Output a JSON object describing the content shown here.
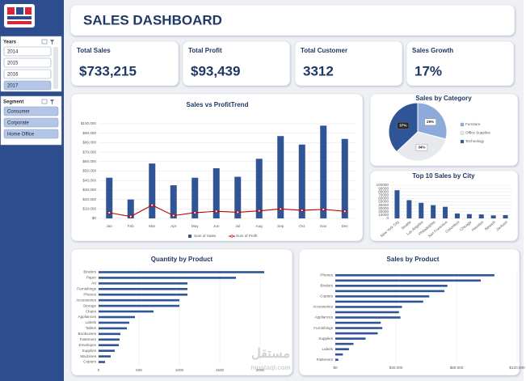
{
  "title": "SALES DASHBOARD",
  "slicers": [
    {
      "title": "Years",
      "items": [
        "2014",
        "2015",
        "2016",
        "2017"
      ],
      "selected": [
        false,
        false,
        false,
        true
      ]
    },
    {
      "title": "Segment",
      "items": [
        "Consumer",
        "Corporate",
        "Home Office"
      ],
      "selected": [
        true,
        true,
        true
      ]
    }
  ],
  "kpis": [
    {
      "label": "Total Sales",
      "value": "$733,215"
    },
    {
      "label": "Total Profit",
      "value": "$93,439"
    },
    {
      "label": "Total Customer",
      "value": "3312"
    },
    {
      "label": "Sales Growth",
      "value": "17%"
    }
  ],
  "watermark": [
    "مستقل",
    "mostaql.com"
  ],
  "chart_data": [
    {
      "type": "combo",
      "title": "Sales vs ProfitTrend",
      "categories": [
        "Jan",
        "Feb",
        "Mar",
        "Apr",
        "May",
        "Jun",
        "Jul",
        "Aug",
        "Sep",
        "Oct",
        "Nov",
        "Dec"
      ],
      "series": [
        {
          "name": "Sum of Sales",
          "color": "#2f5597",
          "type": "bar",
          "values": [
            43000,
            20000,
            58000,
            35000,
            43000,
            53000,
            44000,
            63000,
            87000,
            78000,
            98000,
            84000
          ]
        },
        {
          "name": "Sum of Profit",
          "color": "#c00000",
          "type": "line",
          "values": [
            6000,
            2000,
            14000,
            3000,
            6000,
            7500,
            6500,
            8000,
            10000,
            8500,
            9500,
            7500
          ]
        }
      ],
      "ylim": [
        0,
        100000
      ],
      "yticks": [
        {
          "value": 0,
          "label": "$0"
        },
        {
          "value": 10000,
          "label": "$10,000"
        },
        {
          "value": 20000,
          "label": "$20,000"
        },
        {
          "value": 30000,
          "label": "$30,000"
        },
        {
          "value": 40000,
          "label": "$40,000"
        },
        {
          "value": 50000,
          "label": "$50,000"
        },
        {
          "value": 60000,
          "label": "$60,000"
        },
        {
          "value": 70000,
          "label": "$70,000"
        },
        {
          "value": 80000,
          "label": "$80,000"
        },
        {
          "value": 90000,
          "label": "$90,000"
        },
        {
          "value": 100000,
          "label": "$100,000"
        }
      ],
      "grid": true,
      "legend": "bottom"
    },
    {
      "type": "pie",
      "title": "Sales by Category",
      "categories": [
        "Furniture",
        "Office Supplies",
        "Technology"
      ],
      "values": [
        29,
        34,
        37
      ],
      "value_labels": [
        "29%",
        "34%",
        "37%"
      ],
      "colors": [
        "#8eaadb",
        "#e7e9ef",
        "#2f5597"
      ],
      "legend": "right"
    },
    {
      "type": "bar",
      "title": "Top 10 Sales by City",
      "categories": [
        "New York City",
        "Seattle",
        "Los Angeles",
        "Philadelphia",
        "San Francisco",
        "Columbus",
        "Chicago",
        "Houston",
        "Newark",
        "Jackson"
      ],
      "values": [
        85000,
        55000,
        47000,
        40000,
        35000,
        15000,
        13000,
        12000,
        9000,
        10000
      ],
      "color": "#2f5597",
      "ylim": [
        0,
        100000
      ],
      "yticks": [
        0,
        10000,
        20000,
        30000,
        40000,
        50000,
        60000,
        70000,
        80000,
        90000,
        100000
      ],
      "grid": true
    },
    {
      "type": "hbar",
      "title": "Quantity by Product",
      "categories": [
        "Binders",
        "Paper",
        "Art",
        "Furnishings",
        "Phones",
        "Accessories",
        "Storage",
        "Chairs",
        "Appliances",
        "Labels",
        "Tables",
        "Bookcases",
        "Fasteners",
        "Envelopes",
        "Supplies",
        "Machines",
        "Copiers"
      ],
      "values": [
        2050,
        1700,
        1100,
        1100,
        1100,
        1000,
        1000,
        680,
        450,
        380,
        350,
        270,
        260,
        250,
        200,
        150,
        80
      ],
      "color": "#2f5597",
      "xlim": [
        0,
        2100
      ],
      "xticks": [
        0,
        500,
        1000,
        1500,
        2000
      ],
      "grid": true
    },
    {
      "type": "hbar",
      "title": "Sales by Product",
      "categories": [
        "Phones",
        null,
        "Binders",
        null,
        "Copiers",
        null,
        "Accessories",
        null,
        "Appliances",
        null,
        "Furnishings",
        null,
        "Supplies",
        null,
        "Labels",
        null,
        "Fasteners"
      ],
      "values": [
        105000,
        96000,
        74000,
        72000,
        62000,
        58000,
        44000,
        42000,
        43000,
        30000,
        31000,
        28000,
        20000,
        12000,
        9000,
        5000,
        2000
      ],
      "color": "#2f5597",
      "xlim": [
        0,
        120000
      ],
      "xticks": [
        {
          "value": 0,
          "label": "$0"
        },
        {
          "value": 40000,
          "label": "$40,000"
        },
        {
          "value": 80000,
          "label": "$80,000"
        },
        {
          "value": 120000,
          "label": "$120,000"
        }
      ],
      "grid": true
    }
  ]
}
